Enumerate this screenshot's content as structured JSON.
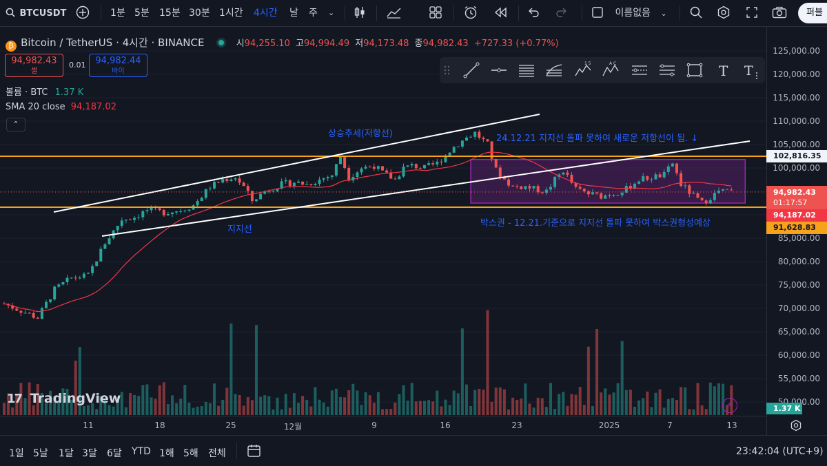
{
  "toolbar": {
    "symbol": "BTCUSDT",
    "intervals": [
      "1분",
      "5분",
      "15분",
      "30분",
      "1시간",
      "4시간",
      "날",
      "주"
    ],
    "active_interval": "4시간",
    "layout_name": "이름없음",
    "publish_label": "퍼블"
  },
  "legend": {
    "title": "Bitcoin / TetherUS · 4시간 · BINANCE",
    "open_label": "시",
    "open": "94,255.10",
    "high_label": "고",
    "high": "94,994.49",
    "low_label": "저",
    "low": "94,173.48",
    "close_label": "종",
    "close": "94,982.43",
    "change": "+727.33 (+0.77%)",
    "sell_price": "94,982.43",
    "sell_label": "셀",
    "spread": "0.01",
    "buy_price": "94,982.44",
    "buy_label": "바이",
    "volume_label": "볼륨 · BTC",
    "volume_value": "1.37 K",
    "sma_label": "SMA 20 close",
    "sma_value": "94,187.02",
    "collapse_icon": "chevron-up-icon"
  },
  "annotations": {
    "resistance": "상승추세(저항선)",
    "support": "지지선",
    "note_top": "24.12.21 지지선 돌파 못하여 새로운 저항선이 됨. ↓",
    "note_box": "박스권 - 12.21.기준으로 지지선 돌파 못하여 박스권형성예상"
  },
  "price_axis": {
    "ticks": [
      "125,000.00",
      "120,000.00",
      "115,000.00",
      "110,000.00",
      "105,000.00",
      "100,000.00",
      "85,000.00",
      "80,000.00",
      "75,000.00",
      "70,000.00",
      "65,000.00",
      "60,000.00",
      "55,000.00",
      "50,000.00"
    ],
    "labels": {
      "level_high": "102,816.35",
      "current": "94,982.43",
      "countdown": "01:17:57",
      "sma": "94,187.02",
      "level_low": "91,628.83",
      "volume": "1.37 K"
    }
  },
  "time_axis": {
    "ticks": [
      "11",
      "18",
      "25",
      "12월",
      "9",
      "16",
      "23",
      "2025",
      "7",
      "13"
    ]
  },
  "bottom_bar": {
    "ranges": [
      "1일",
      "5날",
      "1달",
      "3달",
      "6달",
      "YTD",
      "1해",
      "5해",
      "전체"
    ],
    "clock": "23:42:04 (UTC+9)"
  },
  "watermark": "TradingView",
  "colors": {
    "background": "#131722",
    "up": "#26a69a",
    "down": "#ef5350",
    "level_line": "#f7a21b",
    "sma_line": "#f23645",
    "trend_line": "#ffffff",
    "annotation": "#2962ff",
    "box_fill": "#9c27b0"
  },
  "chart_data": {
    "type": "candlestick",
    "symbol": "Bitcoin / TetherUS",
    "exchange": "BINANCE",
    "interval": "4시간",
    "x": [
      "11",
      "18",
      "25",
      "12월",
      "9",
      "16",
      "23",
      "2025",
      "7",
      "13"
    ],
    "ylim": [
      47000,
      127000
    ],
    "close_path": [
      [
        0,
        71000
      ],
      [
        4,
        69500
      ],
      [
        8,
        68000
      ],
      [
        12,
        74000
      ],
      [
        16,
        76500
      ],
      [
        20,
        77000
      ],
      [
        24,
        84000
      ],
      [
        28,
        89000
      ],
      [
        31,
        89500
      ],
      [
        34,
        91000
      ],
      [
        38,
        90500
      ],
      [
        42,
        91000
      ],
      [
        45,
        92000
      ],
      [
        49,
        96000
      ],
      [
        52,
        97500
      ],
      [
        55,
        98000
      ],
      [
        57,
        96000
      ],
      [
        59,
        93000
      ],
      [
        62,
        95000
      ],
      [
        66,
        96500
      ],
      [
        69,
        97000
      ],
      [
        72,
        96500
      ],
      [
        75,
        97500
      ],
      [
        78,
        98500
      ],
      [
        80,
        102500
      ],
      [
        82,
        98000
      ],
      [
        85,
        100000
      ],
      [
        88,
        100500
      ],
      [
        90,
        99000
      ],
      [
        93,
        97500
      ],
      [
        95,
        100000
      ],
      [
        97,
        100500
      ],
      [
        100,
        100000
      ],
      [
        103,
        101000
      ],
      [
        107,
        104500
      ],
      [
        110,
        106500
      ],
      [
        112,
        107500
      ],
      [
        115,
        105000
      ],
      [
        117,
        99500
      ],
      [
        119,
        97500
      ],
      [
        121,
        96000
      ],
      [
        124,
        96000
      ],
      [
        126,
        95500
      ],
      [
        129,
        95000
      ],
      [
        131,
        97500
      ],
      [
        133,
        99500
      ],
      [
        136,
        95500
      ],
      [
        139,
        94500
      ],
      [
        142,
        94000
      ],
      [
        145,
        94500
      ],
      [
        148,
        95500
      ],
      [
        151,
        97500
      ],
      [
        154,
        98000
      ],
      [
        157,
        98500
      ],
      [
        159,
        101000
      ],
      [
        161,
        96500
      ],
      [
        164,
        94000
      ],
      [
        166,
        92500
      ],
      [
        170,
        95000
      ],
      [
        173,
        94982.43
      ]
    ],
    "sma20": {
      "name": "SMA 20 close",
      "last": 94187.02
    },
    "levels": [
      {
        "price": 102816.35,
        "color": "#f7a21b"
      },
      {
        "price": 91628.83,
        "color": "#f7a21b"
      }
    ],
    "trendlines": [
      {
        "from": [
          11,
          91500
        ],
        "to": [
          119,
          111000
        ],
        "label": "상승추세(저항선)"
      },
      {
        "from": [
          21,
          86000
        ],
        "to": [
          173,
          105500
        ],
        "label": "지지선"
      }
    ],
    "box": {
      "from_index": 111,
      "to_index": 173,
      "top": 101800,
      "bottom": 92500
    },
    "volume_last": "1.37 K"
  }
}
